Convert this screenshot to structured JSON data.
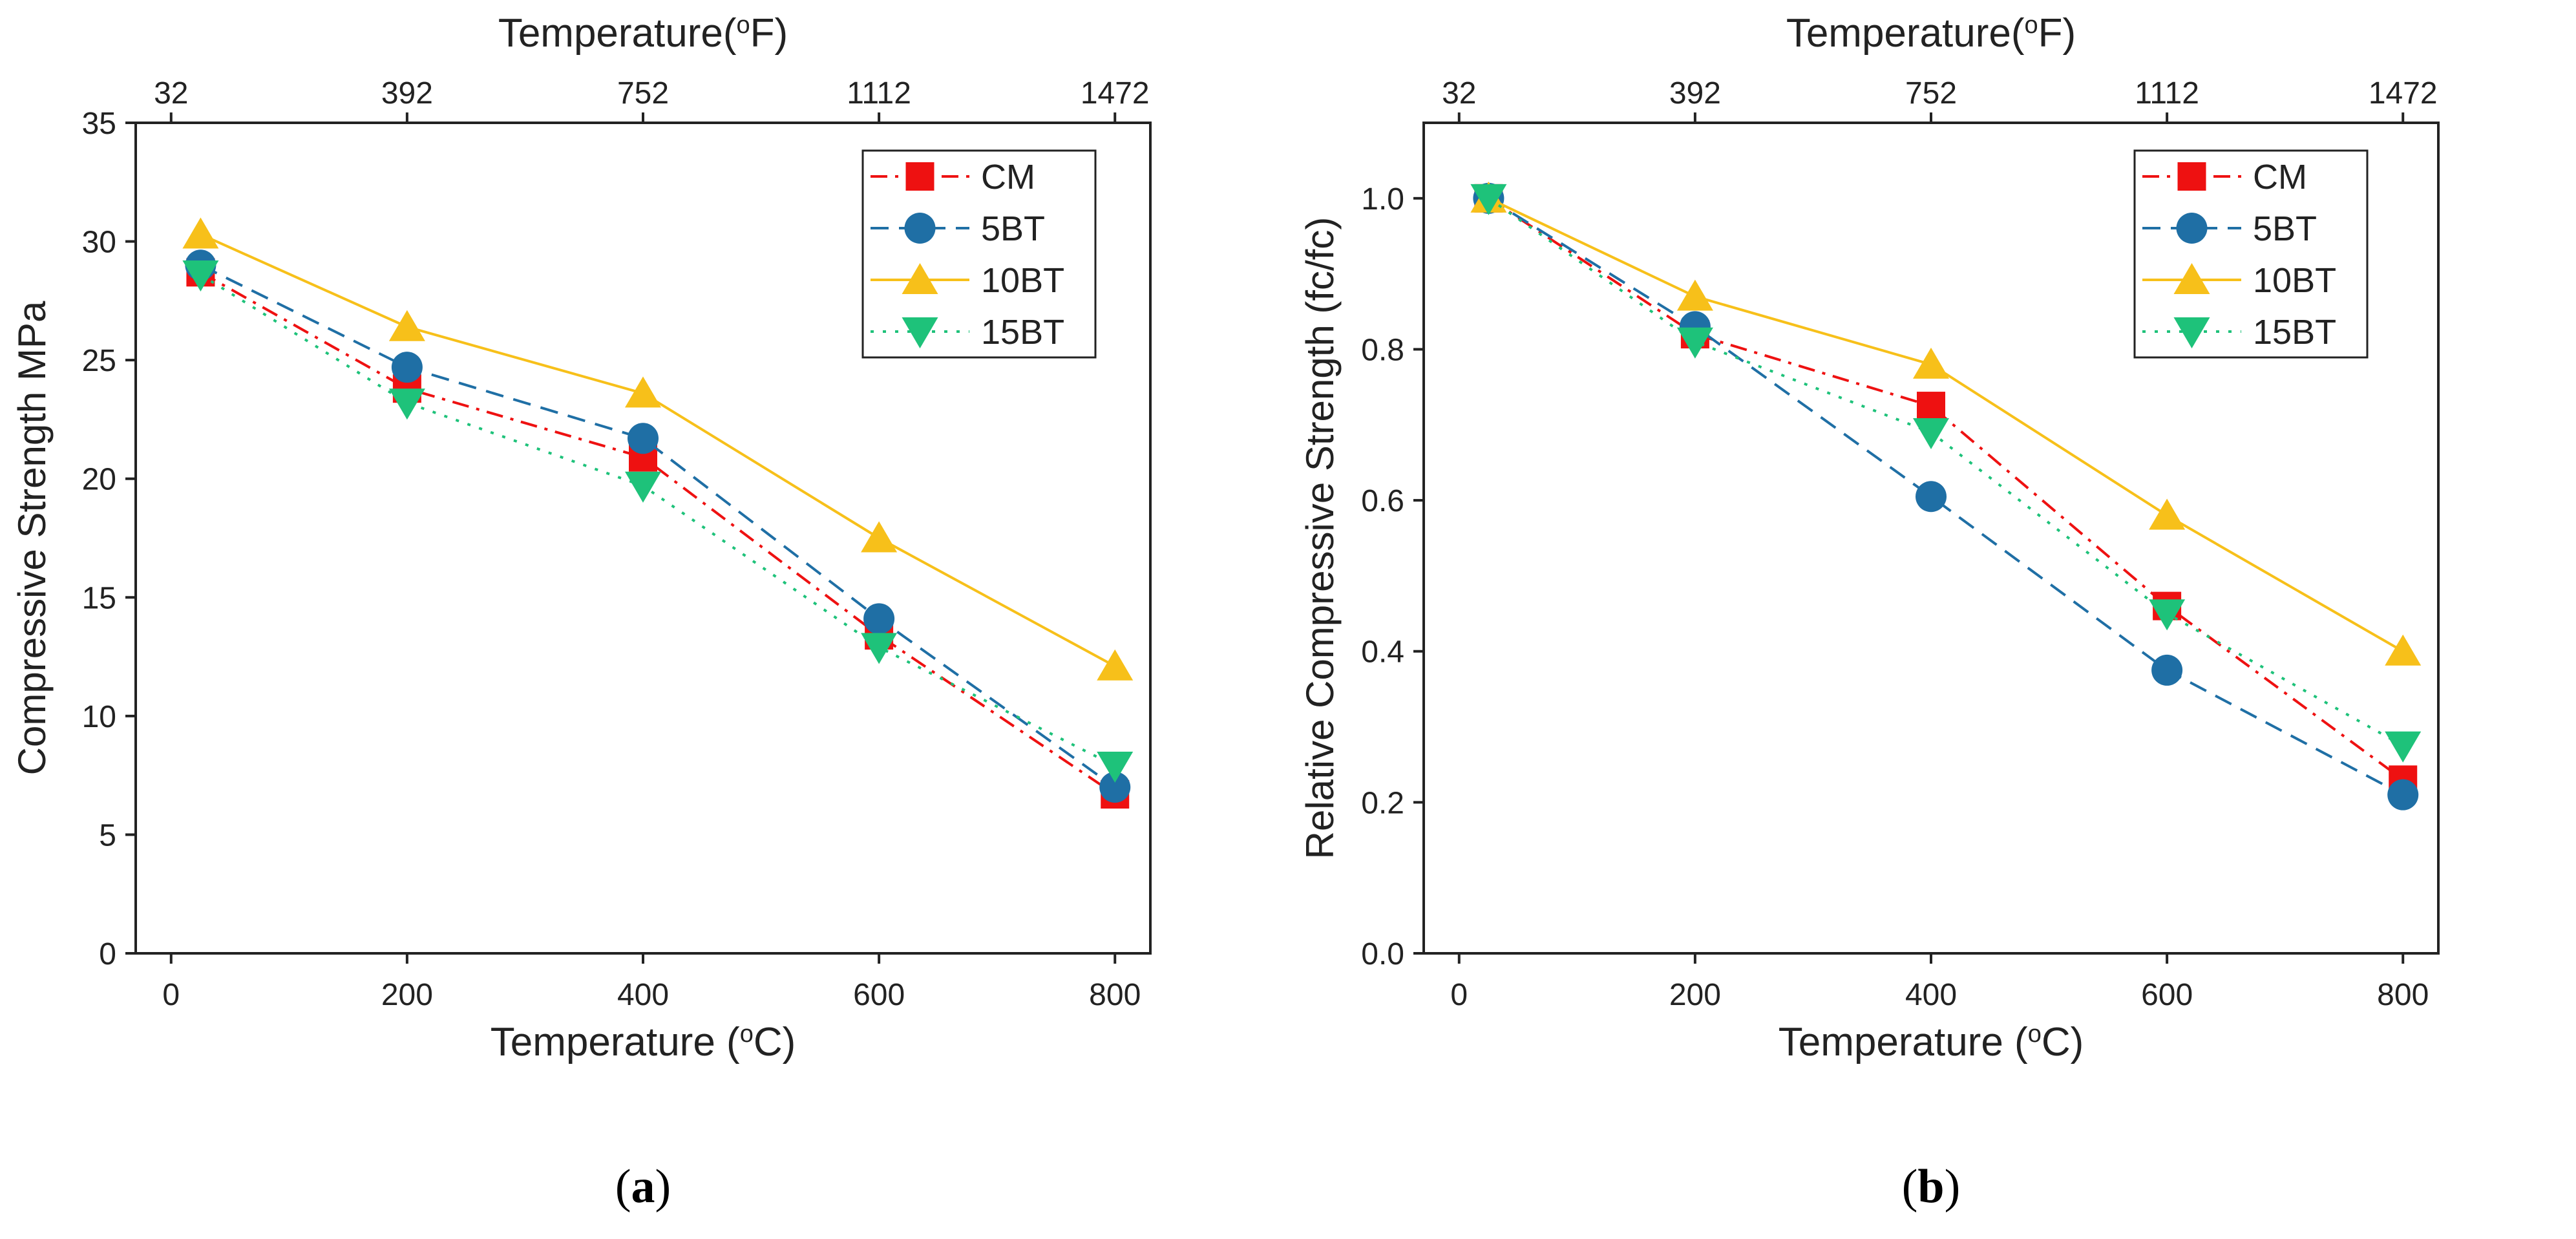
{
  "colors": {
    "CM": "#ee1111",
    "5BT": "#1f6fa5",
    "10BT": "#f7c01a",
    "15BT": "#1ec27a",
    "axis": "#222222"
  },
  "chart_data": [
    {
      "type": "line",
      "caption_prefix": "(",
      "caption_letter": "a",
      "caption_suffix": ")",
      "xlabel_main": "Temperature (",
      "xlabel_sup": "o",
      "xlabel_unit": "C)",
      "x2label_main": "Temperature(",
      "x2label_sup": "o",
      "x2label_unit": "F)",
      "ylabel": "Compressive Strength MPa",
      "xlim": [
        -30,
        830
      ],
      "ylim": [
        0,
        35
      ],
      "x": [
        25,
        200,
        400,
        600,
        800
      ],
      "xticks": [
        0,
        200,
        400,
        600,
        800
      ],
      "xtick_labels": [
        "0",
        "200",
        "400",
        "600",
        "800"
      ],
      "yticks": [
        0,
        5,
        10,
        15,
        20,
        25,
        30,
        35
      ],
      "ytick_labels": [
        "0",
        "5",
        "10",
        "15",
        "20",
        "25",
        "30",
        "35"
      ],
      "x2ticks": [
        0,
        200,
        400,
        600,
        800
      ],
      "x2tick_labels": [
        "32",
        "392",
        "752",
        "1112",
        "1472"
      ],
      "legend_position": "top-right",
      "series": [
        {
          "name": "CM",
          "marker": "square",
          "dash": "dashdot",
          "values": [
            28.7,
            23.8,
            20.9,
            13.4,
            6.7
          ]
        },
        {
          "name": "5BT",
          "marker": "circle",
          "dash": "dash",
          "values": [
            29.0,
            24.7,
            21.7,
            14.1,
            7.0
          ]
        },
        {
          "name": "10BT",
          "marker": "triangle-up",
          "dash": "solid",
          "values": [
            30.3,
            26.4,
            23.6,
            17.5,
            12.1
          ]
        },
        {
          "name": "15BT",
          "marker": "triangle-down",
          "dash": "dot",
          "values": [
            28.6,
            23.2,
            19.7,
            12.9,
            7.9
          ]
        }
      ]
    },
    {
      "type": "line",
      "caption_prefix": "(",
      "caption_letter": "b",
      "caption_suffix": ")",
      "xlabel_main": "Temperature (",
      "xlabel_sup": "o",
      "xlabel_unit": "C)",
      "x2label_main": "Temperature(",
      "x2label_sup": "o",
      "x2label_unit": "F)",
      "ylabel": "Relative Compressive Strength (fc/fc)",
      "xlim": [
        -30,
        830
      ],
      "ylim": [
        0,
        1.1
      ],
      "x": [
        25,
        200,
        400,
        600,
        800
      ],
      "xticks": [
        0,
        200,
        400,
        600,
        800
      ],
      "xtick_labels": [
        "0",
        "200",
        "400",
        "600",
        "800"
      ],
      "yticks": [
        0,
        0.2,
        0.4,
        0.6,
        0.8,
        1.0
      ],
      "ytick_labels": [
        "0.0",
        "0.2",
        "0.4",
        "0.6",
        "0.8",
        "1.0"
      ],
      "x2ticks": [
        0,
        200,
        400,
        600,
        800
      ],
      "x2tick_labels": [
        "32",
        "392",
        "752",
        "1112",
        "1472"
      ],
      "legend_position": "top-right",
      "series": [
        {
          "name": "CM",
          "marker": "square",
          "dash": "dashdot",
          "values": [
            1.0,
            0.82,
            0.725,
            0.46,
            0.23
          ]
        },
        {
          "name": "5BT",
          "marker": "circle",
          "dash": "dash",
          "values": [
            1.0,
            0.83,
            0.605,
            0.375,
            0.21
          ]
        },
        {
          "name": "10BT",
          "marker": "triangle-up",
          "dash": "solid",
          "values": [
            1.0,
            0.87,
            0.78,
            0.58,
            0.4
          ]
        },
        {
          "name": "15BT",
          "marker": "triangle-down",
          "dash": "dot",
          "values": [
            1.0,
            0.81,
            0.69,
            0.45,
            0.275
          ]
        }
      ]
    }
  ]
}
